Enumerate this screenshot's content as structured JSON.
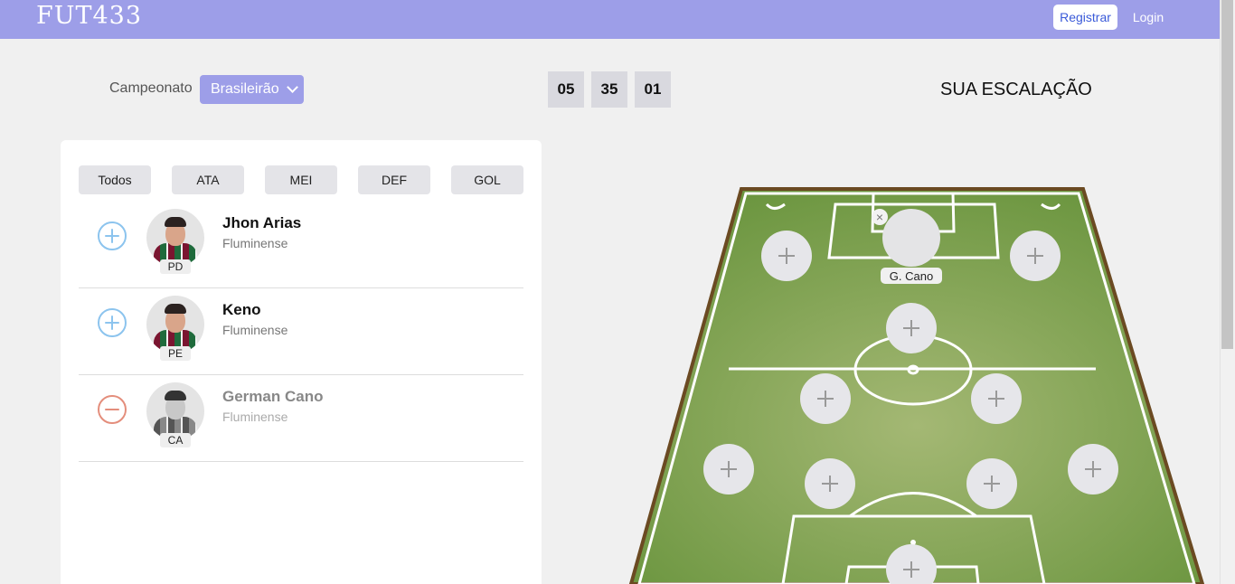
{
  "brand": {
    "logo": "FUT433"
  },
  "nav": {
    "register": "Registrar",
    "login": "Login"
  },
  "championship": {
    "label": "Campeonato",
    "selected": "Brasileirão"
  },
  "timer": [
    "05",
    "35",
    "01"
  ],
  "lineup": {
    "title": "SUA ESCALAÇÃO",
    "selected_player": "G. Cano",
    "remove_icon": "×"
  },
  "filters": [
    "Todos",
    "ATA",
    "MEI",
    "DEF",
    "GOL"
  ],
  "players": [
    {
      "name": "Jhon Arias",
      "team": "Fluminense",
      "position": "PD",
      "selected": false
    },
    {
      "name": "Keno",
      "team": "Fluminense",
      "position": "PE",
      "selected": false
    },
    {
      "name": "German Cano",
      "team": "Fluminense",
      "position": "CA",
      "selected": true
    }
  ],
  "icons": {
    "add": "plus-circle-icon",
    "remove": "minus-circle-icon",
    "slot": "plus-icon",
    "dropdown": "chevron-down-icon"
  },
  "colors": {
    "accent": "#9d9ee8",
    "pitch": "#8aab5a",
    "add": "#8cc4ee",
    "remove": "#e48e7c"
  }
}
